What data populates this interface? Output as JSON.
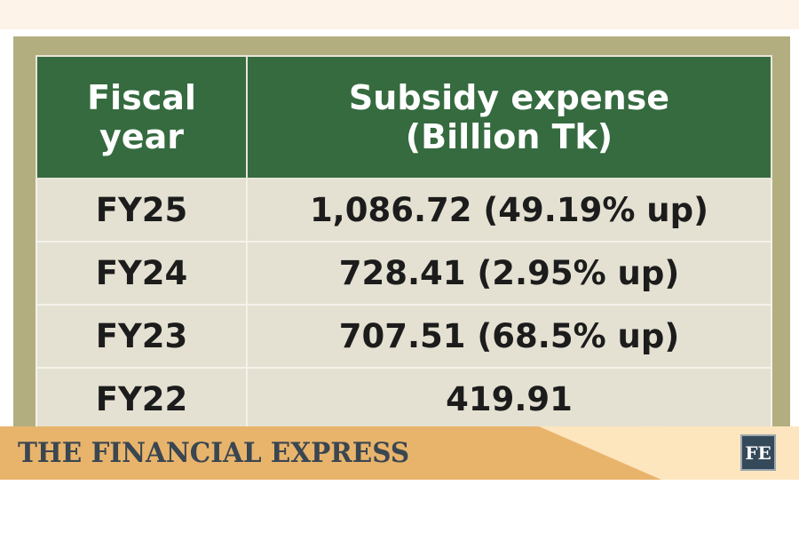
{
  "table": {
    "headers": [
      {
        "line1": "Fiscal",
        "line2": "year"
      },
      {
        "line1": "Subsidy expense",
        "line2": "(Billion Tk)"
      }
    ],
    "rows": [
      {
        "year": "FY25",
        "value": "1,086.72 (49.19% up)"
      },
      {
        "year": "FY24",
        "value": "728.41 (2.95% up)"
      },
      {
        "year": "FY23",
        "value": "707.51 (68.5% up)"
      },
      {
        "year": "FY22",
        "value": "419.91"
      }
    ]
  },
  "footer": {
    "brand": "THE FINANCIAL EXPRESS",
    "logo": "FE"
  }
}
